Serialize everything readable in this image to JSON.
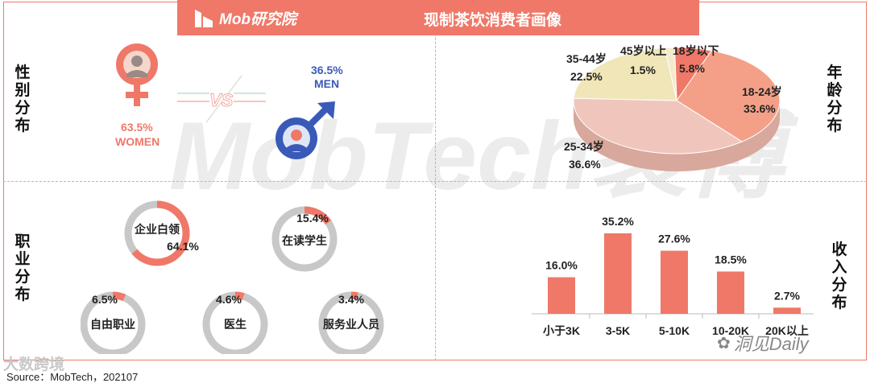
{
  "header": {
    "logo_text": "Mob研究院",
    "title": "现制茶饮消费者画像"
  },
  "sections": {
    "gender_label": "性别分布",
    "age_label": "年龄分布",
    "occupation_label": "职业分布",
    "income_label": "收入分布"
  },
  "gender": {
    "women_pct": "63.5%",
    "women_label": "WOMEN",
    "men_pct": "36.5%",
    "men_label": "MEN",
    "vs_text": "VS"
  },
  "watermark_text": "MobTech袤博",
  "footer": {
    "brand_text": "大数跨境",
    "wechat_text": "洞见Daily",
    "source": "Source：MobTech，202107"
  },
  "colors": {
    "accent": "#f07868",
    "men_blue": "#3a5ab8",
    "ring_gray": "#c8c8c8",
    "pie_18_24": "#f4a088",
    "pie_25_34": "#f0c6bc",
    "pie_35_44": "#f0e6b8",
    "pie_45_plus": "#f4eacc",
    "pie_under18": "#f07868",
    "bar": "#f07868"
  },
  "chart_data": [
    {
      "type": "pie",
      "name": "年龄分布",
      "slices": [
        {
          "label": "18岁以下",
          "value": 5.8,
          "value_label": "5.8%"
        },
        {
          "label": "18-24岁",
          "value": 33.6,
          "value_label": "33.6%"
        },
        {
          "label": "25-34岁",
          "value": 36.6,
          "value_label": "36.6%"
        },
        {
          "label": "35-44岁",
          "value": 22.5,
          "value_label": "22.5%"
        },
        {
          "label": "45岁以上",
          "value": 1.5,
          "value_label": "1.5%"
        }
      ]
    },
    {
      "type": "bar",
      "name": "收入分布",
      "categories": [
        "小于3K",
        "3-5K",
        "5-10K",
        "10-20K",
        "20K以上"
      ],
      "values": [
        16.0,
        35.2,
        27.6,
        18.5,
        2.7
      ],
      "value_labels": [
        "16.0%",
        "35.2%",
        "27.6%",
        "18.5%",
        "2.7%"
      ]
    },
    {
      "type": "donut",
      "name": "职业分布",
      "items": [
        {
          "label": "企业白领",
          "value": 64.1,
          "value_label": "64.1%"
        },
        {
          "label": "在读学生",
          "value": 15.4,
          "value_label": "15.4%"
        },
        {
          "label": "自由职业",
          "value": 6.5,
          "value_label": "6.5%"
        },
        {
          "label": "医生",
          "value": 4.6,
          "value_label": "4.6%"
        },
        {
          "label": "服务业人员",
          "value": 3.4,
          "value_label": "3.4%"
        }
      ]
    }
  ]
}
